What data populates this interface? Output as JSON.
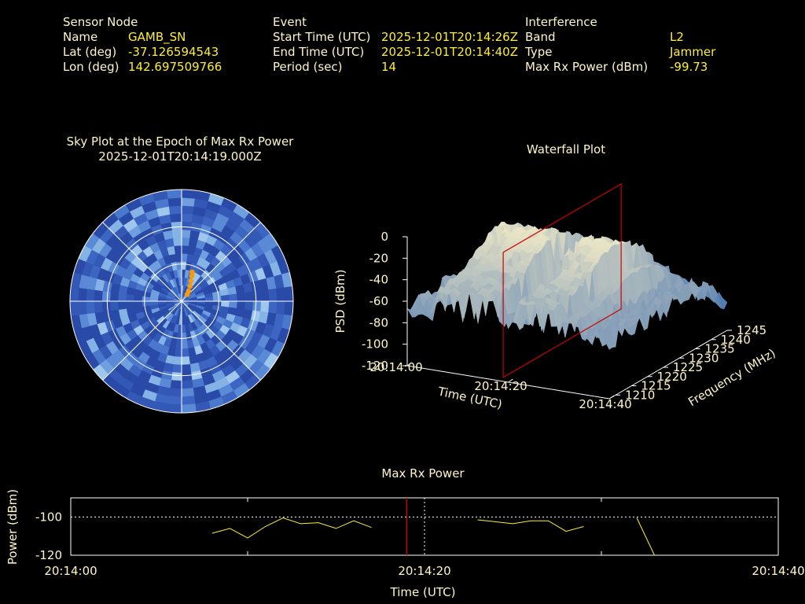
{
  "header": {
    "sensor": {
      "heading": "Sensor Node",
      "name_label": "Name",
      "name_value": "GAMB_SN",
      "lat_label": "Lat (deg)",
      "lat_value": "-37.126594543",
      "lon_label": "Lon (deg)",
      "lon_value": "142.697509766"
    },
    "event": {
      "heading": "Event",
      "start_label": "Start Time (UTC)",
      "start_value": "2025-12-01T20:14:26Z",
      "end_label": "End Time (UTC)",
      "end_value": "2025-12-01T20:14:40Z",
      "period_label": "Period (sec)",
      "period_value": "14"
    },
    "interference": {
      "heading": "Interference",
      "band_label": "Band",
      "band_value": "L2",
      "type_label": "Type",
      "type_value": "Jammer",
      "power_label": "Max Rx Power (dBm)",
      "power_value": "-99.73"
    }
  },
  "colors": {
    "text": "#fff6c8",
    "value": "#ffee33",
    "sky_blue": "#3f6fc8",
    "marker": "#ff9900",
    "cursor": "#cc0000",
    "series": "#ffee33"
  },
  "chart_data": [
    {
      "type": "sky-polar",
      "title": "Sky Plot at the Epoch of Max Rx Power",
      "subtitle": "2025-12-01T20:14:19.000Z",
      "track": [
        {
          "az": 20,
          "zen": 25
        },
        {
          "az": 22,
          "zen": 22
        },
        {
          "az": 25,
          "zen": 18
        },
        {
          "az": 30,
          "zen": 14
        },
        {
          "az": 35,
          "zen": 10
        },
        {
          "az": 40,
          "zen": 7
        }
      ],
      "zenith_rings_deg": [
        30,
        60,
        90
      ]
    },
    {
      "type": "surface-3d",
      "title": "Waterfall Plot",
      "zlabel": "PSD (dBm)",
      "xlabel": "Time (UTC)",
      "ylabel": "Frequency (MHz)",
      "z_ticks": [
        "0",
        "-20",
        "-40",
        "-60",
        "-80",
        "-100",
        "-120"
      ],
      "time_ticks": [
        "20:14:00",
        "20:14:20",
        "20:14:40"
      ],
      "freq_ticks": [
        "1210",
        "1215",
        "1220",
        "1225",
        "1230",
        "1235",
        "1240",
        "1245"
      ],
      "zlim": [
        -120,
        0
      ],
      "time_range_s": [
        0,
        40
      ],
      "freq_range_mhz": [
        1208,
        1245
      ],
      "cursor_time_s": 19
    },
    {
      "type": "line",
      "title": "Max Rx Power",
      "xlabel": "Time (UTC)",
      "ylabel": "Power (dBm)",
      "x_ticks": [
        "20:14:00",
        "20:14:20",
        "20:14:40"
      ],
      "y_ticks": [
        "-100",
        "-120"
      ],
      "xlim": [
        0,
        40
      ],
      "ylim": [
        -120,
        -90
      ],
      "reference_line": -100,
      "cursor_time_s": 19,
      "series": [
        {
          "segments": [
            [
              [
                8,
                -108.5
              ],
              [
                9,
                -106
              ],
              [
                10,
                -111
              ],
              [
                11,
                -105
              ],
              [
                12,
                -100.5
              ],
              [
                13,
                -103.5
              ],
              [
                14,
                -103
              ],
              [
                15,
                -106
              ],
              [
                16,
                -102
              ],
              [
                17,
                -105.5
              ]
            ],
            [
              [
                23,
                -101.5
              ],
              [
                24,
                -102.5
              ],
              [
                25,
                -103.5
              ],
              [
                26,
                -102
              ],
              [
                27,
                -102
              ],
              [
                28,
                -107.5
              ],
              [
                29,
                -105
              ]
            ],
            [
              [
                32,
                -100.5
              ],
              [
                33,
                -120
              ]
            ]
          ]
        }
      ]
    }
  ]
}
